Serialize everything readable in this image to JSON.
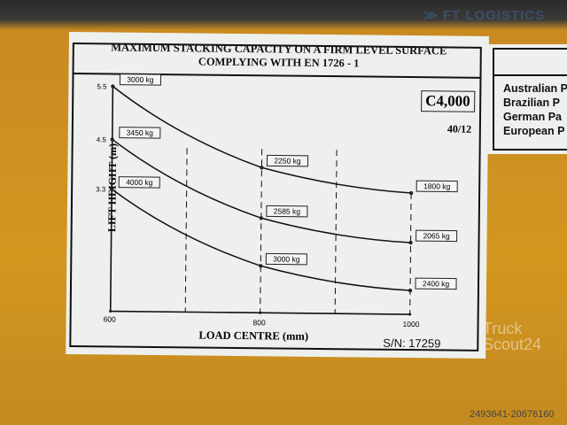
{
  "watermark": {
    "brand": "FT LOGISTICS",
    "site_line1": "Truck",
    "site_line2": "Scout24",
    "listing_id": "2493641-20676160"
  },
  "plate": {
    "title_line1": "MAXIMUM STACKING CAPACITY ON A FIRM LEVEL SURFACE",
    "title_line2": "COMPLYING WITH EN 1726 - 1",
    "model": "C4,000",
    "code": "40/12",
    "serial": "S/N: 17259"
  },
  "side_plate": {
    "lines": [
      "Australian P",
      "Brazilian P",
      "German Pa",
      "European P"
    ]
  },
  "chart_data": {
    "type": "line",
    "title": "MAXIMUM STACKING CAPACITY ON A FIRM LEVEL SURFACE COMPLYING WITH EN 1726 - 1",
    "xlabel": "LOAD CENTRE (mm)",
    "ylabel": "LIFT HEIGHT (m)",
    "x": [
      600,
      800,
      1000
    ],
    "x_ticks": [
      "600",
      "800",
      "1000"
    ],
    "y_ticks": [
      "5.5",
      "4.5",
      "3.3"
    ],
    "series": [
      {
        "height": "5.5",
        "values": [
          3000,
          2250,
          1800
        ],
        "labels": [
          "3000 kg",
          "2250 kg",
          "1800 kg"
        ]
      },
      {
        "height": "4.5",
        "values": [
          3450,
          2585,
          2065
        ],
        "labels": [
          "3450 kg",
          "2585 kg",
          "2065 kg"
        ]
      },
      {
        "height": "3.3",
        "values": [
          4000,
          3000,
          2400
        ],
        "labels": [
          "4000 kg",
          "3000 kg",
          "2400 kg"
        ]
      }
    ],
    "grid": "dashed vertical"
  }
}
